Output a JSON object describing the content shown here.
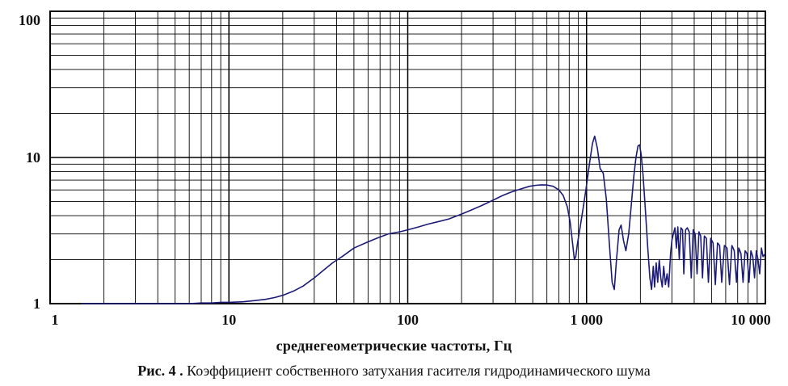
{
  "figure": {
    "xlabel": "среднегеометрические частоты, Гц",
    "caption_prefix": "Рис. 4 .",
    "caption_text": " Коэффициент собственного затухания гасителя гидродинамического шума"
  },
  "chart_data": {
    "type": "line",
    "title": "",
    "xlabel": "среднегеометрические частоты, Гц",
    "ylabel": "",
    "xscale": "log",
    "yscale": "log",
    "xlim": [
      1,
      10000
    ],
    "ylim": [
      1,
      100
    ],
    "grid": "log major and minor gridlines, both axes, black",
    "legend": "none",
    "x_tick_values": [
      1,
      10,
      100,
      1000,
      10000
    ],
    "x_tick_labels": [
      "1",
      "10",
      "100",
      "1 000",
      "10 000"
    ],
    "y_tick_values": [
      1,
      10,
      100
    ],
    "y_tick_labels": [
      "1",
      "10",
      "100"
    ],
    "line_color": "#1c1c78",
    "grid_color": "#000000",
    "series": [
      {
        "name": "коэффициент собственного затухания",
        "points": [
          [
            1.5,
            1.0
          ],
          [
            2,
            1.0
          ],
          [
            3,
            1.0
          ],
          [
            4,
            1.0
          ],
          [
            5,
            1.0
          ],
          [
            6,
            1.0
          ],
          [
            7,
            1.01
          ],
          [
            8,
            1.01
          ],
          [
            9,
            1.02
          ],
          [
            10,
            1.02
          ],
          [
            12,
            1.03
          ],
          [
            14,
            1.05
          ],
          [
            16,
            1.07
          ],
          [
            18,
            1.1
          ],
          [
            20,
            1.14
          ],
          [
            23,
            1.22
          ],
          [
            26,
            1.32
          ],
          [
            30,
            1.5
          ],
          [
            34,
            1.7
          ],
          [
            38,
            1.9
          ],
          [
            43,
            2.1
          ],
          [
            50,
            2.4
          ],
          [
            58,
            2.6
          ],
          [
            67,
            2.8
          ],
          [
            78,
            3.0
          ],
          [
            90,
            3.1
          ],
          [
            100,
            3.2
          ],
          [
            115,
            3.35
          ],
          [
            130,
            3.5
          ],
          [
            150,
            3.65
          ],
          [
            170,
            3.8
          ],
          [
            200,
            4.1
          ],
          [
            230,
            4.4
          ],
          [
            260,
            4.7
          ],
          [
            300,
            5.1
          ],
          [
            340,
            5.5
          ],
          [
            380,
            5.8
          ],
          [
            430,
            6.1
          ],
          [
            480,
            6.35
          ],
          [
            520,
            6.45
          ],
          [
            560,
            6.5
          ],
          [
            600,
            6.48
          ],
          [
            650,
            6.35
          ],
          [
            700,
            6.0
          ],
          [
            740,
            5.5
          ],
          [
            780,
            4.6
          ],
          [
            810,
            3.6
          ],
          [
            835,
            2.6
          ],
          [
            855,
            2.0
          ],
          [
            870,
            2.1
          ],
          [
            890,
            2.6
          ],
          [
            920,
            3.3
          ],
          [
            960,
            4.6
          ],
          [
            1000,
            6.5
          ],
          [
            1040,
            9.2
          ],
          [
            1080,
            12.5
          ],
          [
            1110,
            14.0
          ],
          [
            1150,
            11.5
          ],
          [
            1190,
            8.4
          ],
          [
            1240,
            7.8
          ],
          [
            1290,
            5.2
          ],
          [
            1340,
            2.6
          ],
          [
            1390,
            1.4
          ],
          [
            1430,
            1.25
          ],
          [
            1470,
            2.0
          ],
          [
            1520,
            3.2
          ],
          [
            1560,
            3.45
          ],
          [
            1610,
            2.7
          ],
          [
            1660,
            2.3
          ],
          [
            1720,
            3.0
          ],
          [
            1780,
            4.8
          ],
          [
            1840,
            7.5
          ],
          [
            1890,
            10.0
          ],
          [
            1940,
            12.0
          ],
          [
            1980,
            12.2
          ],
          [
            2020,
            10.5
          ],
          [
            2070,
            7.5
          ],
          [
            2130,
            4.5
          ],
          [
            2200,
            2.4
          ],
          [
            2260,
            1.5
          ],
          [
            2310,
            1.25
          ],
          [
            2360,
            1.8
          ],
          [
            2400,
            1.3
          ],
          [
            2450,
            1.9
          ],
          [
            2500,
            1.4
          ],
          [
            2550,
            2.0
          ],
          [
            2600,
            1.5
          ],
          [
            2650,
            1.3
          ],
          [
            2700,
            1.8
          ],
          [
            2760,
            1.35
          ],
          [
            2820,
            1.6
          ],
          [
            2880,
            1.3
          ],
          [
            2950,
            2.2
          ],
          [
            3000,
            2.7
          ],
          [
            3060,
            3.0
          ],
          [
            3120,
            3.3
          ],
          [
            3180,
            2.4
          ],
          [
            3240,
            3.35
          ],
          [
            3300,
            2.0
          ],
          [
            3370,
            3.3
          ],
          [
            3440,
            3.2
          ],
          [
            3500,
            1.6
          ],
          [
            3580,
            3.2
          ],
          [
            3660,
            3.3
          ],
          [
            3750,
            3.1
          ],
          [
            3850,
            1.5
          ],
          [
            3950,
            3.2
          ],
          [
            4050,
            3.0
          ],
          [
            4150,
            1.6
          ],
          [
            4250,
            3.1
          ],
          [
            4350,
            2.9
          ],
          [
            4450,
            1.5
          ],
          [
            4560,
            2.9
          ],
          [
            4680,
            2.8
          ],
          [
            4800,
            1.4
          ],
          [
            4950,
            2.8
          ],
          [
            5100,
            2.6
          ],
          [
            5250,
            1.35
          ],
          [
            5400,
            2.6
          ],
          [
            5550,
            2.5
          ],
          [
            5700,
            1.4
          ],
          [
            5900,
            2.5
          ],
          [
            6100,
            2.4
          ],
          [
            6300,
            1.35
          ],
          [
            6500,
            2.5
          ],
          [
            6700,
            2.3
          ],
          [
            6900,
            1.4
          ],
          [
            7100,
            2.4
          ],
          [
            7300,
            2.2
          ],
          [
            7500,
            1.4
          ],
          [
            7700,
            2.3
          ],
          [
            7900,
            2.2
          ],
          [
            8100,
            1.4
          ],
          [
            8300,
            2.3
          ],
          [
            8500,
            2.1
          ],
          [
            8700,
            1.5
          ],
          [
            8900,
            2.3
          ],
          [
            9100,
            2.0
          ],
          [
            9300,
            1.6
          ],
          [
            9500,
            2.4
          ],
          [
            9700,
            2.1
          ],
          [
            10000,
            2.2
          ]
        ]
      }
    ]
  }
}
